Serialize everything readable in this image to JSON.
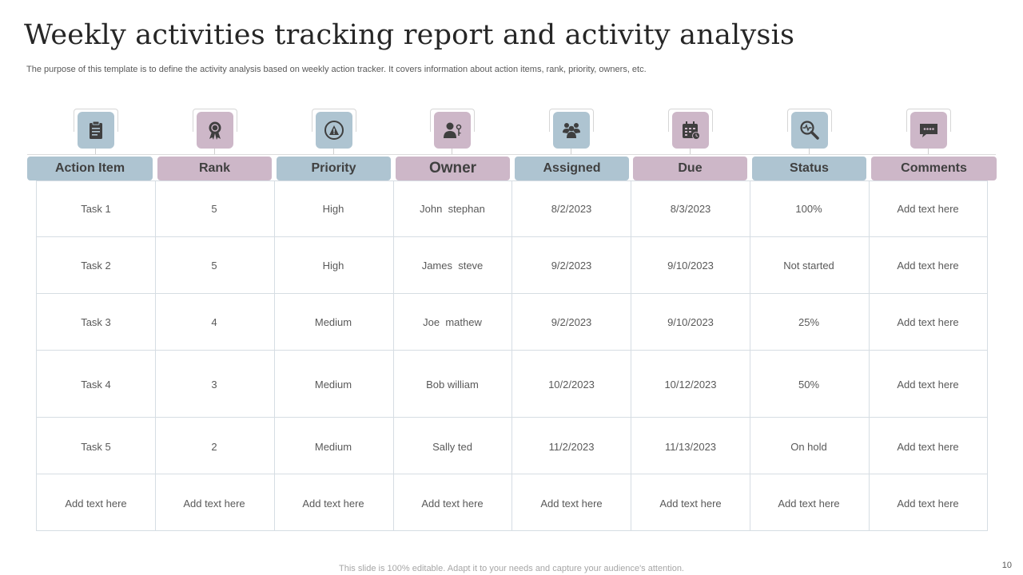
{
  "title": "Weekly activities tracking report and activity analysis",
  "subtitle": "The purpose of this template is to define the activity analysis based on weekly action tracker. It covers information about action items, rank, priority, owners, etc.",
  "columns": [
    {
      "label": "Action Item",
      "icon": "clipboard-icon",
      "tone": "blue"
    },
    {
      "label": "Rank",
      "icon": "award-ribbon-icon",
      "tone": "mauve"
    },
    {
      "label": "Priority",
      "icon": "gauge-warning-icon",
      "tone": "blue"
    },
    {
      "label": "Owner",
      "icon": "person-key-icon",
      "tone": "mauve"
    },
    {
      "label": "Assigned",
      "icon": "team-icon",
      "tone": "blue"
    },
    {
      "label": "Due",
      "icon": "calendar-clock-icon",
      "tone": "mauve"
    },
    {
      "label": "Status",
      "icon": "magnifier-pulse-icon",
      "tone": "blue"
    },
    {
      "label": "Comments",
      "icon": "chat-bubble-icon",
      "tone": "mauve"
    }
  ],
  "rows": [
    [
      "Task 1",
      "5",
      "High",
      "John  stephan",
      "8/2/2023",
      "8/3/2023",
      "100%",
      "Add text here"
    ],
    [
      "Task 2",
      "5",
      "High",
      "James  steve",
      "9/2/2023",
      "9/10/2023",
      "Not started",
      "Add text here"
    ],
    [
      "Task 3",
      "4",
      "Medium",
      "Joe  mathew",
      "9/2/2023",
      "9/10/2023",
      "25%",
      "Add text here"
    ],
    [
      "Task 4",
      "3",
      "Medium",
      "Bob william",
      "10/2/2023",
      "10/12/2023",
      "50%",
      "Add text here"
    ],
    [
      "Task 5",
      "2",
      "Medium",
      "Sally ted",
      "11/2/2023",
      "11/13/2023",
      "On hold",
      "Add text here"
    ],
    [
      "Add text here",
      "Add text here",
      "Add text here",
      "Add text here",
      "Add text here",
      "Add text here",
      "Add text here",
      "Add text here"
    ]
  ],
  "colors": {
    "blue": "#aec4d1",
    "mauve": "#cdb7c8",
    "icon_dark": "#3f3f3f"
  },
  "footer": "This slide is 100% editable. Adapt it to your needs and capture your audience's attention.",
  "page_number": "10"
}
